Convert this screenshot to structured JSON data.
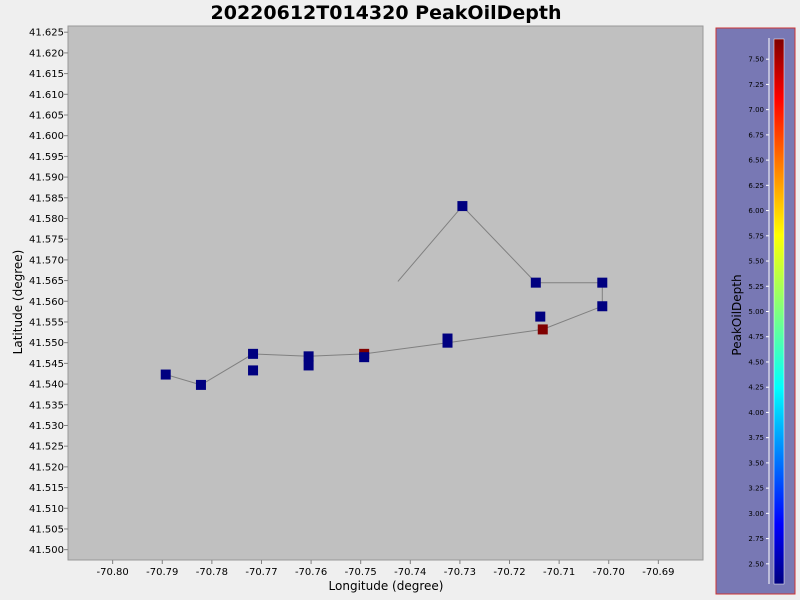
{
  "chart_data": {
    "type": "scatter",
    "title": "20220612T014320 PeakOilDepth",
    "xlabel": "Longitude (degree)",
    "ylabel": "Latitude (degree)",
    "xlim": [
      -70.809,
      -70.681
    ],
    "ylim": [
      41.4975,
      41.6265
    ],
    "x_ticks": [
      -70.8,
      -70.79,
      -70.78,
      -70.77,
      -70.76,
      -70.75,
      -70.74,
      -70.73,
      -70.72,
      -70.71,
      -70.7,
      -70.69
    ],
    "x_tick_labels": [
      "-70.80",
      "-70.79",
      "-70.78",
      "-70.77",
      "-70.76",
      "-70.75",
      "-70.74",
      "-70.73",
      "-70.72",
      "-70.71",
      "-70.70",
      "-70.69"
    ],
    "y_ticks": [
      41.5,
      41.505,
      41.51,
      41.515,
      41.52,
      41.525,
      41.53,
      41.535,
      41.54,
      41.545,
      41.55,
      41.555,
      41.56,
      41.565,
      41.57,
      41.575,
      41.58,
      41.585,
      41.59,
      41.595,
      41.6,
      41.605,
      41.61,
      41.615,
      41.62,
      41.625
    ],
    "y_tick_labels": [
      "41.500",
      "41.505",
      "41.510",
      "41.515",
      "41.520",
      "41.525",
      "41.530",
      "41.535",
      "41.540",
      "41.545",
      "41.550",
      "41.555",
      "41.560",
      "41.565",
      "41.570",
      "41.575",
      "41.580",
      "41.585",
      "41.590",
      "41.595",
      "41.600",
      "41.605",
      "41.610",
      "41.615",
      "41.620",
      "41.625"
    ],
    "grid": false,
    "track": [
      [
        -70.7893,
        41.5423
      ],
      [
        -70.7822,
        41.5398
      ],
      [
        -70.7717,
        41.5473
      ],
      [
        -70.7605,
        41.5467
      ],
      [
        -70.7493,
        41.5473
      ],
      [
        -70.7325,
        41.55
      ],
      [
        -70.7133,
        41.5532
      ],
      [
        -70.7013,
        41.5588
      ],
      [
        -70.7013,
        41.5645
      ],
      [
        -70.7147,
        41.5645
      ],
      [
        -70.7295,
        41.583
      ],
      [
        -70.7425,
        41.5648
      ]
    ],
    "points": [
      {
        "x": -70.7893,
        "y": 41.5423,
        "value": 2.3
      },
      {
        "x": -70.7822,
        "y": 41.5398,
        "value": 2.3
      },
      {
        "x": -70.7717,
        "y": 41.5473,
        "value": 2.3
      },
      {
        "x": -70.7717,
        "y": 41.5433,
        "value": 2.3
      },
      {
        "x": -70.7605,
        "y": 41.5467,
        "value": 2.3
      },
      {
        "x": -70.7605,
        "y": 41.5445,
        "value": 2.3
      },
      {
        "x": -70.7493,
        "y": 41.5473,
        "value": 7.7
      },
      {
        "x": -70.7493,
        "y": 41.5465,
        "value": 2.3
      },
      {
        "x": -70.7325,
        "y": 41.551,
        "value": 2.3
      },
      {
        "x": -70.7325,
        "y": 41.55,
        "value": 2.3
      },
      {
        "x": -70.7138,
        "y": 41.5563,
        "value": 2.3
      },
      {
        "x": -70.7133,
        "y": 41.5532,
        "value": 7.7
      },
      {
        "x": -70.7013,
        "y": 41.5588,
        "value": 2.3
      },
      {
        "x": -70.7013,
        "y": 41.5645,
        "value": 2.3
      },
      {
        "x": -70.7147,
        "y": 41.5645,
        "value": 2.3
      },
      {
        "x": -70.7295,
        "y": 41.583,
        "value": 2.3
      }
    ],
    "colorbar": {
      "label": "PeakOilDepth",
      "range": [
        2.3,
        7.7
      ],
      "ticks": [
        2.5,
        2.75,
        3.0,
        3.25,
        3.5,
        3.75,
        4.0,
        4.25,
        4.5,
        4.75,
        5.0,
        5.25,
        5.5,
        5.75,
        6.0,
        6.25,
        6.5,
        6.75,
        7.0,
        7.25,
        7.5
      ],
      "tick_labels": [
        "2.50",
        "2.75",
        "3.00",
        "3.25",
        "3.50",
        "3.75",
        "4.00",
        "4.25",
        "4.50",
        "4.75",
        "5.00",
        "5.25",
        "5.50",
        "5.75",
        "6.00",
        "6.25",
        "6.50",
        "6.75",
        "7.00",
        "7.25",
        "7.50"
      ],
      "colormap": "jet"
    },
    "colors": {
      "page_background": "#efefef",
      "plot_background": "#c0c0c0",
      "track_line": "#808080",
      "legend_panel": "#7878b4",
      "legend_border": "#cc3333"
    }
  }
}
